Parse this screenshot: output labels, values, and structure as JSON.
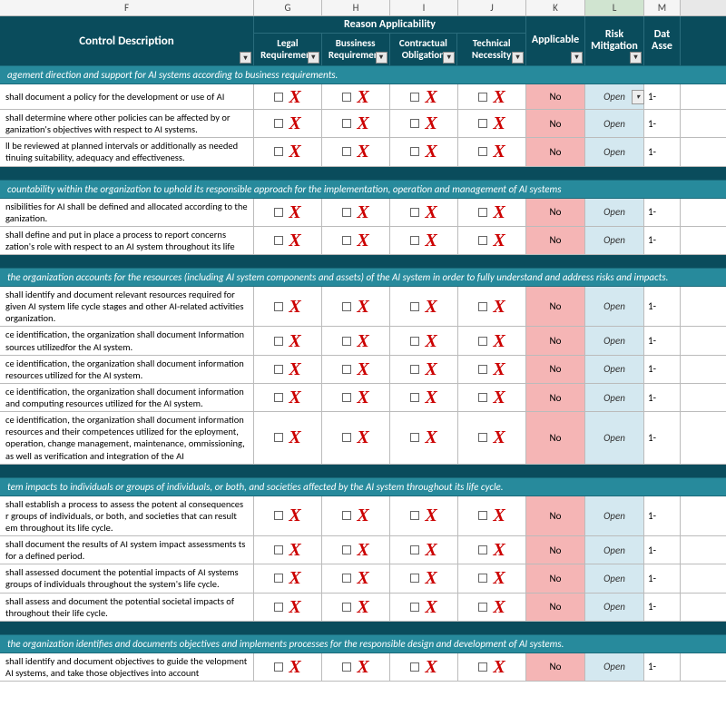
{
  "columns": {
    "F": "F",
    "G": "G",
    "H": "H",
    "I": "I",
    "J": "J",
    "K": "K",
    "L": "L",
    "M": "M"
  },
  "headers": {
    "desc": "Control Description",
    "group": "Reason Applicability",
    "sub": {
      "legal": "Legal Requirement",
      "business": "Bussiness Requirement",
      "contract": "Contractual Obligation",
      "tech": "Technical Necessity"
    },
    "applicable": "Applicable",
    "risk": "Risk Mitigation",
    "date": "Dat Asse"
  },
  "values": {
    "no": "No",
    "open": "Open",
    "date": "1-"
  },
  "sections": [
    {
      "title": "agement direction and support for AI systems according to business requirements.",
      "rows": [
        "shall document a policy for the development or use of AI",
        "shall determine where other policies can be affected by or ganization's objectives with respect to AI systems.",
        "ll be reviewed at planned intervals or additionally as needed tinuing suitability, adequacy and effectiveness."
      ]
    },
    {
      "title": "countability within the organization to uphold its responsible approach for the implementation, operation and management of AI systems",
      "rows": [
        "nsibilities for AI shall be defined and allocated according to the ganization.",
        "shall define and put in place a process to report concerns zation's role with respect to an AI system throughout its life"
      ]
    },
    {
      "title": "the organization accounts for the resources (including AI system components and assets) of the AI system in order to fully understand and address risks and impacts.",
      "rows": [
        "shall identify and document relevant resources required for given AI system life cycle stages and other AI-related activities organization.",
        "ce identification, the organization shall document Information sources utilizedfor the AI system.",
        "ce identification, the organization shall document information  resources utilized for the AI system.",
        "ce identification, the organization shall document information  and computing resources utilized for the AI system.",
        "ce identification, the organization shall document information  resources and their competences utilized for the eployment, operation, change management, maintenance, ommissioning, as well as verification and integration of the AI"
      ]
    },
    {
      "title": "tem impacts to individuals or groups of individuals, or both, and societies affected by the AI system throughout its life cycle.",
      "rows": [
        "shall establish a process to assess the potent al consequences r groups of individuals, or both, and societies that can result em throughout its life cycle.",
        "shall document the results of AI system impact assessments ts for a defined period.",
        "shall assessed document the potential impacts of AI systems groups of individuals throughout the system's life cycle.",
        "shall assess and document the potential societal impacts of throughout their life cycle."
      ]
    },
    {
      "title": "the organization identifies  and documents objectives and implements processes for the responsible design and development of AI systems.",
      "rows": [
        "shall identify and document objectives to guide the velopment AI systems, and take those objectives into account"
      ]
    }
  ]
}
